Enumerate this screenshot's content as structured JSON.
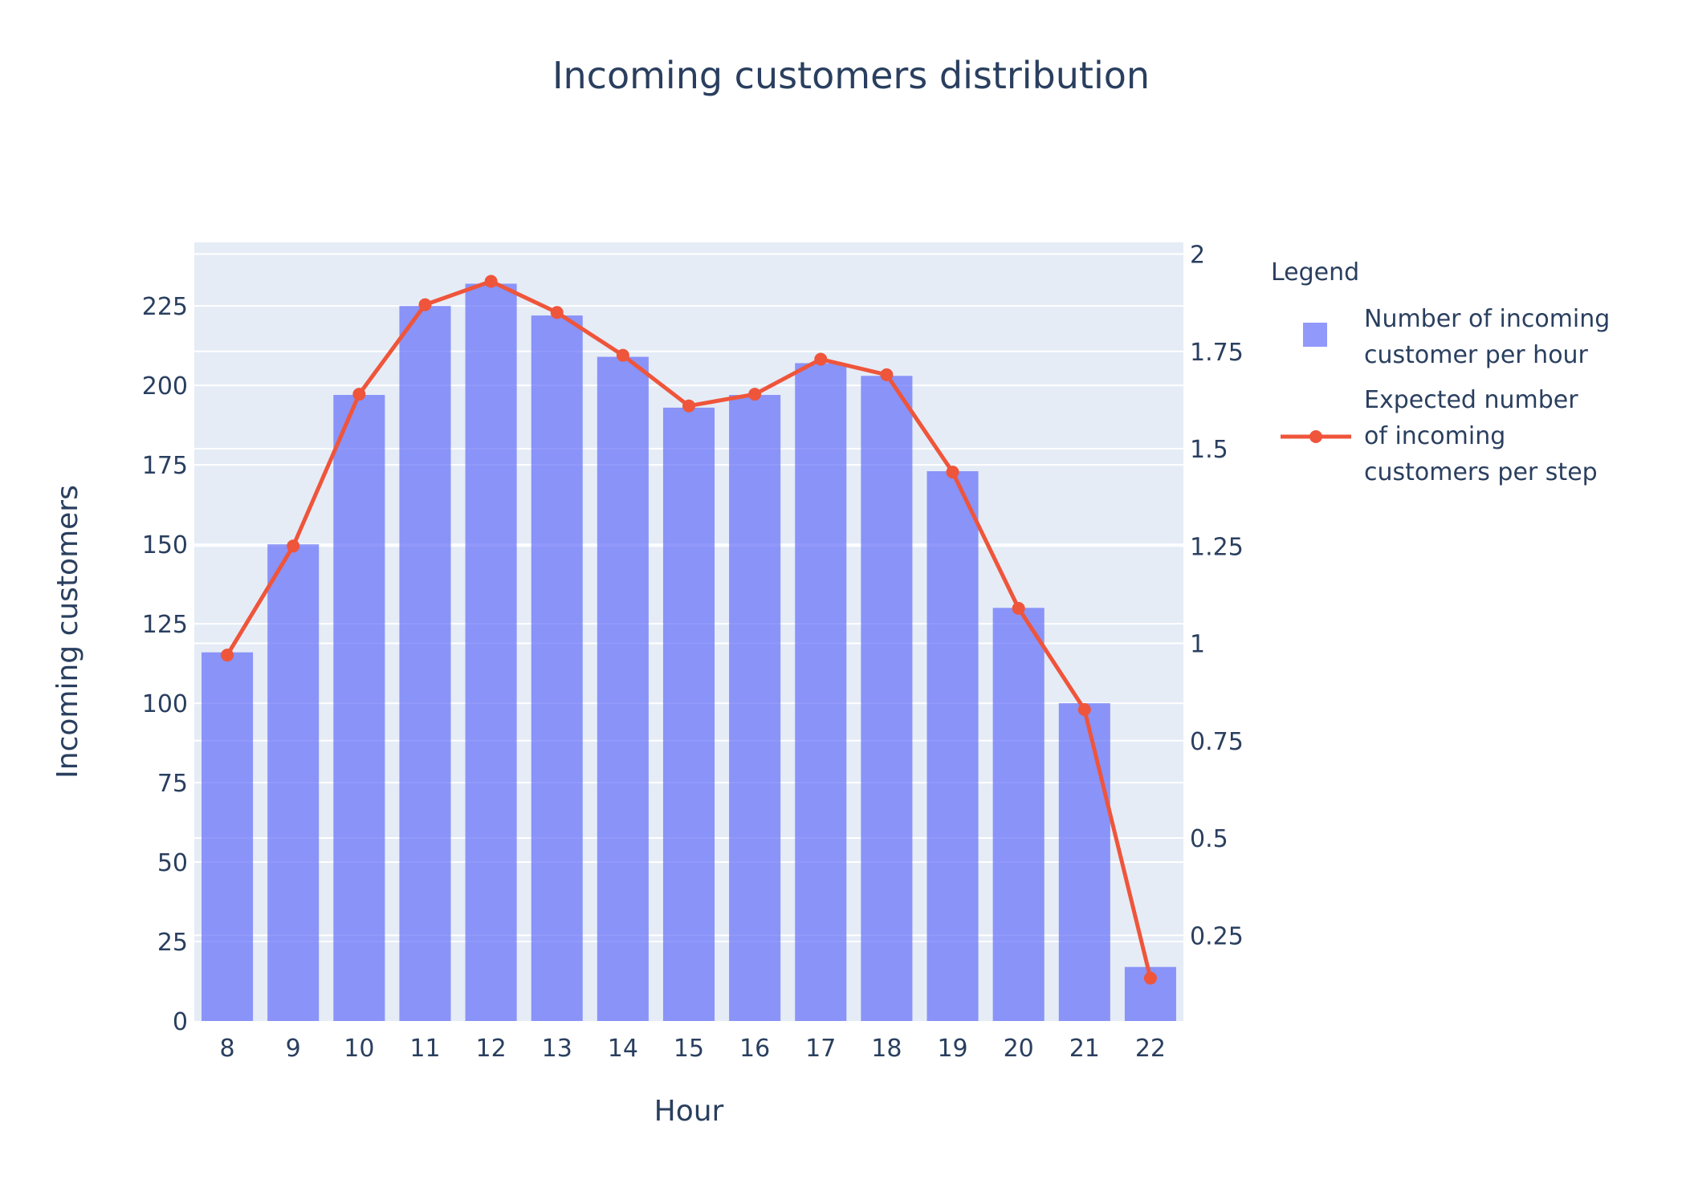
{
  "colors": {
    "background": "#ffffff",
    "plot_bg": "#e5ecf6",
    "grid": "#ffffff",
    "text": "#2a3f5f",
    "bar": "#636efa",
    "line": "#ef553b"
  },
  "chart_data": {
    "type": "bar",
    "title": "Incoming customers distribution",
    "xlabel": "Hour",
    "ylabel": "Incoming customers",
    "y2label": "",
    "categories": [
      "8",
      "9",
      "10",
      "11",
      "12",
      "13",
      "14",
      "15",
      "16",
      "17",
      "18",
      "19",
      "20",
      "21",
      "22"
    ],
    "ylim": [
      0,
      245
    ],
    "y2lim": [
      0.03,
      2.03
    ],
    "yticks": [
      0,
      25,
      50,
      75,
      100,
      125,
      150,
      175,
      200,
      225
    ],
    "ytick_labels": [
      "0",
      "25",
      "50",
      "75",
      "100",
      "125",
      "150",
      "175",
      "200",
      "225"
    ],
    "y2ticks": [
      0.25,
      0.5,
      0.75,
      1,
      1.25,
      1.5,
      1.75,
      2
    ],
    "y2tick_labels": [
      "0.25",
      "0.5",
      "0.75",
      "1",
      "1.25",
      "1.5",
      "1.75",
      "2"
    ],
    "grid": true,
    "legend": {
      "title": "Legend",
      "placement": "right",
      "entries": [
        {
          "lines": [
            "Number of incoming",
            "customer per hour"
          ]
        },
        {
          "lines": [
            "Expected number",
            "of incoming",
            "customers per step"
          ]
        }
      ]
    },
    "series": [
      {
        "name": "Number of incoming customer per hour",
        "type": "bar",
        "axis": "y",
        "values": [
          116,
          150,
          197,
          225,
          232,
          222,
          209,
          193,
          197,
          207,
          203,
          173,
          130,
          100,
          17
        ]
      },
      {
        "name": "Expected number of incoming customers per step",
        "type": "line",
        "axis": "y2",
        "values": [
          0.97,
          1.25,
          1.64,
          1.87,
          1.93,
          1.85,
          1.74,
          1.61,
          1.64,
          1.73,
          1.69,
          1.44,
          1.09,
          0.83,
          0.14
        ]
      }
    ]
  }
}
